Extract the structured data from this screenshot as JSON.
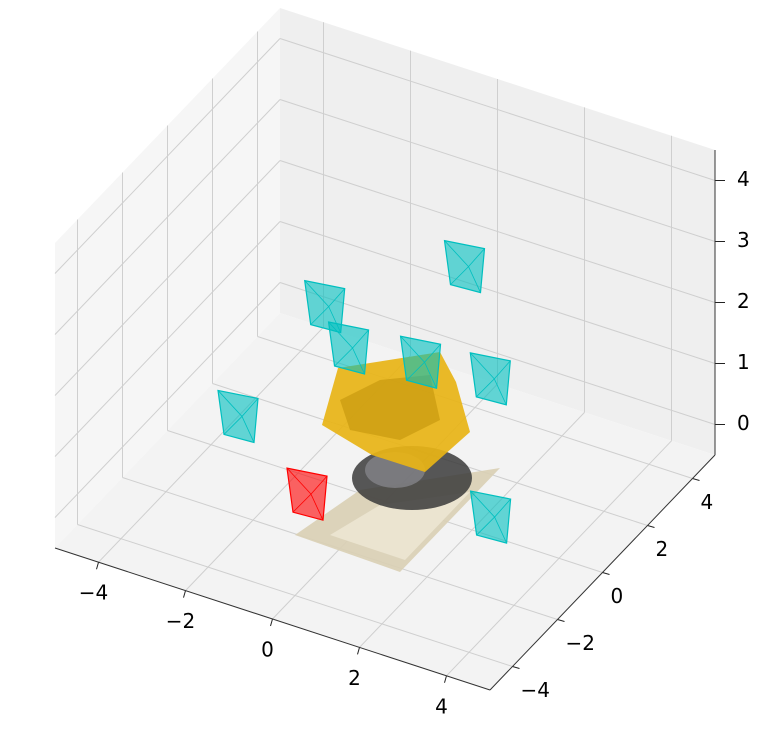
{
  "chart_data": {
    "type": "scatter3d",
    "xlim": [
      -5,
      5
    ],
    "ylim": [
      -5,
      5
    ],
    "zlim": [
      -0.5,
      4.5
    ],
    "xticks": [
      {
        "value": -4,
        "label": "−4"
      },
      {
        "value": -2,
        "label": "−2"
      },
      0,
      2,
      4
    ],
    "yticks": [
      {
        "value": -4,
        "label": "−4"
      },
      {
        "value": -2,
        "label": "−2"
      },
      0,
      2,
      4
    ],
    "zticks": [
      0,
      1,
      2,
      3,
      4
    ],
    "grid": true,
    "series": [
      {
        "color": "#ff0000",
        "x": [
          -0.5
        ],
        "y": [
          -2.5
        ],
        "z": [
          0.5
        ]
      },
      {
        "color": "#00bfbf",
        "x": [
          -2.5,
          -1.8,
          -1.2,
          0.3,
          1.0,
          1.8,
          3.1
        ],
        "y": [
          -1.7,
          0.8,
          0.7,
          1.0,
          1.6,
          1.2,
          -1.3
        ],
        "z": [
          1,
          2,
          1.5,
          1.5,
          3,
          1.5,
          0.5
        ]
      }
    ]
  }
}
